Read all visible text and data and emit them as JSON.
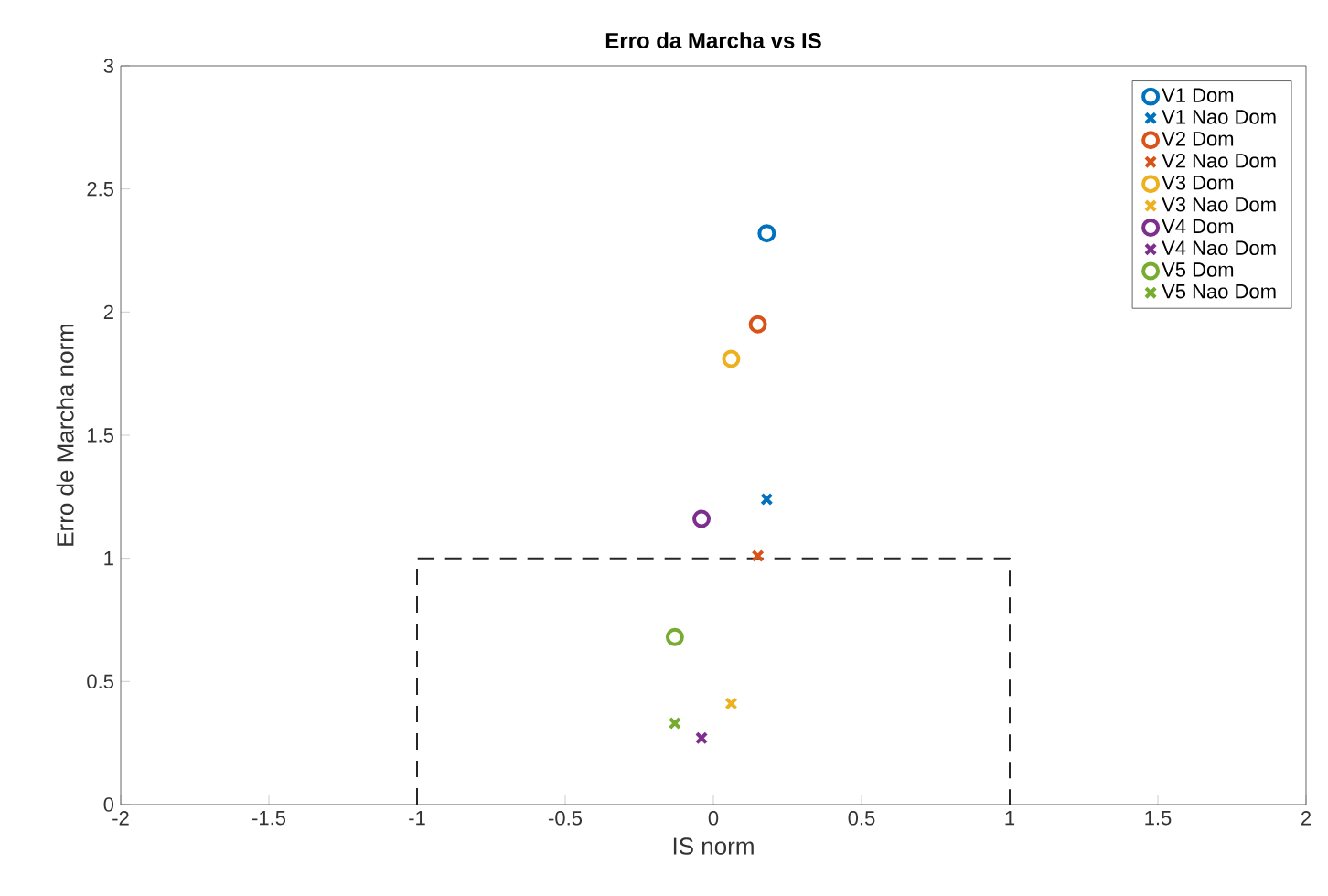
{
  "chart_data": {
    "type": "scatter",
    "title": "Erro da Marcha vs IS",
    "xlabel": "IS norm",
    "ylabel": "Erro de Marcha norm",
    "xlim": [
      -2,
      2
    ],
    "ylim": [
      0,
      3
    ],
    "xticks": [
      -2,
      -1.5,
      -1,
      -0.5,
      0,
      0.5,
      1,
      1.5,
      2
    ],
    "yticks": [
      0,
      0.5,
      1,
      1.5,
      2,
      2.5,
      3
    ],
    "grid": false,
    "legend": "top right",
    "series": [
      {
        "name": "V1 Dom",
        "color": "#0072bd",
        "marker": "circle",
        "x": [
          0.18
        ],
        "values": [
          2.32
        ]
      },
      {
        "name": "V1 Nao Dom",
        "color": "#0072bd",
        "marker": "cross",
        "x": [
          0.18
        ],
        "values": [
          1.24
        ]
      },
      {
        "name": "V2 Dom",
        "color": "#d95319",
        "marker": "circle",
        "x": [
          0.15
        ],
        "values": [
          1.95
        ]
      },
      {
        "name": "V2 Nao Dom",
        "color": "#d95319",
        "marker": "cross",
        "x": [
          0.15
        ],
        "values": [
          1.01
        ]
      },
      {
        "name": "V3 Dom",
        "color": "#edb120",
        "marker": "circle",
        "x": [
          0.06
        ],
        "values": [
          1.81
        ]
      },
      {
        "name": "V3 Nao Dom",
        "color": "#edb120",
        "marker": "cross",
        "x": [
          0.06
        ],
        "values": [
          0.41
        ]
      },
      {
        "name": "V4 Dom",
        "color": "#7e2f8e",
        "marker": "circle",
        "x": [
          -0.04
        ],
        "values": [
          1.16
        ]
      },
      {
        "name": "V4 Nao Dom",
        "color": "#7e2f8e",
        "marker": "cross",
        "x": [
          -0.04
        ],
        "values": [
          0.27
        ]
      },
      {
        "name": "V5 Dom",
        "color": "#77ac30",
        "marker": "circle",
        "x": [
          -0.13
        ],
        "values": [
          0.68
        ]
      },
      {
        "name": "V5 Nao Dom",
        "color": "#77ac30",
        "marker": "cross",
        "x": [
          -0.13
        ],
        "values": [
          0.33
        ]
      },
      {
        "type": "line",
        "color": "#262626",
        "line_style": "dashed",
        "marker": "none",
        "x": [
          -1,
          -1,
          1,
          1
        ],
        "values": [
          0,
          1,
          1,
          0
        ]
      }
    ]
  }
}
